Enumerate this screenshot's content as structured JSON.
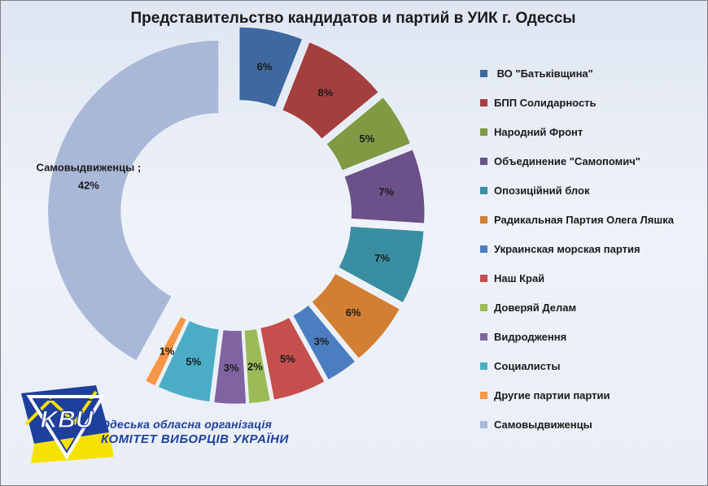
{
  "chart_data": {
    "type": "pie",
    "title": "Представительство кандидатов и партий в УИК г. Одессы",
    "slices": [
      {
        "label": "ВО \"Батьківщина\"",
        "legend": " ВО \"Батьківщина\"",
        "value": 6,
        "display": "6%",
        "color": "#3f68a0"
      },
      {
        "label": "БПП Солидарность",
        "legend": "БПП Солидарность",
        "value": 8,
        "display": "8%",
        "color": "#a3403f"
      },
      {
        "label": "Народний Фронт",
        "legend": "Народний Фронт",
        "value": 5,
        "display": "5%",
        "color": "#7f9a43"
      },
      {
        "label": "Объединение \"Самопомич\"",
        "legend": "Объединение \"Самопомич\"",
        "value": 7,
        "display": "7%",
        "color": "#6b5189"
      },
      {
        "label": "Опозиційний блок",
        "legend": "Опозиційний блок",
        "value": 7,
        "display": "7%",
        "color": "#3a8ea2"
      },
      {
        "label": "Радикальная Партия Олега Ляшка",
        "legend": "Радикальная Партия Олега Ляшка",
        "value": 6,
        "display": "6%",
        "color": "#d27f33"
      },
      {
        "label": "Украинская морская партия",
        "legend": "Украинская морская партия",
        "value": 3,
        "display": "3%",
        "color": "#4a7ec0"
      },
      {
        "label": "Наш Край",
        "legend": "Наш Край",
        "value": 5,
        "display": "5%",
        "color": "#c44f4d"
      },
      {
        "label": "Доверяй Делам",
        "legend": "Доверяй Делам",
        "value": 2,
        "display": "2%",
        "color": "#9bbb59"
      },
      {
        "label": "Видродження",
        "legend": "Видродження",
        "value": 3,
        "display": "3%",
        "color": "#8064a2"
      },
      {
        "label": "Социалисты",
        "legend": "Социалисты",
        "value": 5,
        "display": "5%",
        "color": "#4bacc6"
      },
      {
        "label": "Другие партии партии",
        "legend": "Другие партии партии",
        "value": 1,
        "display": "1%",
        "color": "#f79646"
      },
      {
        "label": "Самовыдвиженцы",
        "legend": "Самовыдвиженцы",
        "value": 42,
        "display": "42%",
        "category_label": "Самовыдвиженцы ;",
        "color": "#aab8d8"
      }
    ],
    "legend_position": "right"
  },
  "logo": {
    "letters": "KBU",
    "line1": "Одеська обласна організація",
    "line2": "КОМІТЕТ ВИБОРЦІВ УКРАЇНИ",
    "colors": {
      "blue": "#1f3f9c",
      "yellow": "#f6e200"
    }
  }
}
